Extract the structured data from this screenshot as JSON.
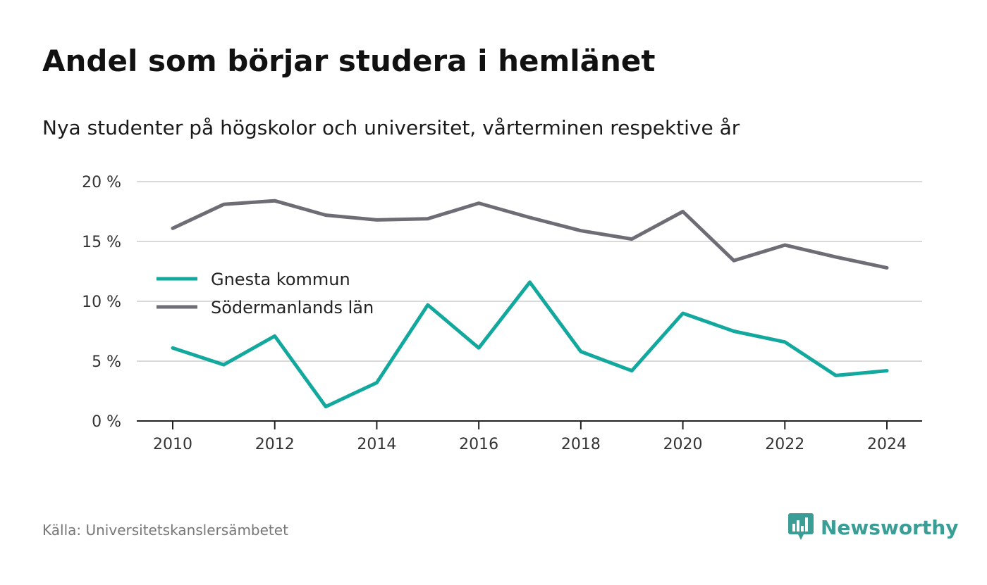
{
  "title": "Andel som börjar studera i hemlänet",
  "subtitle": "Nya studenter på högskolor och universitet, vårterminen respektive år",
  "source": "Källa: Universitetskanslersämbetet",
  "brand": {
    "name": "Newsworthy",
    "icon": "newsworthy-logo-icon",
    "color": "#3a9e96"
  },
  "chart_data": {
    "type": "line",
    "x": [
      2010,
      2011,
      2012,
      2013,
      2014,
      2015,
      2016,
      2017,
      2018,
      2019,
      2020,
      2021,
      2022,
      2023,
      2024
    ],
    "series": [
      {
        "name": "Gnesta kommun",
        "color": "#13a89e",
        "values": [
          6.1,
          4.7,
          7.1,
          1.2,
          3.2,
          9.7,
          6.1,
          11.6,
          5.8,
          4.2,
          9.0,
          7.5,
          6.6,
          3.8,
          4.2
        ]
      },
      {
        "name": "Södermanlands län",
        "color": "#6e6d75",
        "values": [
          16.1,
          18.1,
          18.4,
          17.2,
          16.8,
          16.9,
          18.2,
          17.0,
          15.9,
          15.2,
          17.5,
          13.4,
          14.7,
          13.7,
          12.8
        ]
      }
    ],
    "y_ticks": [
      0,
      5,
      10,
      15,
      20
    ],
    "y_tick_labels": [
      "0 %",
      "5 %",
      "10 %",
      "15 %",
      "20 %"
    ],
    "x_ticks": [
      2010,
      2012,
      2014,
      2016,
      2018,
      2020,
      2022,
      2024
    ],
    "x_tick_labels": [
      "2010",
      "2012",
      "2014",
      "2016",
      "2018",
      "2020",
      "2022",
      "2024"
    ],
    "ylim": [
      0,
      20
    ],
    "xlim": [
      2009.3,
      2024.7
    ],
    "grid": true,
    "legend_position": "center-left",
    "xlabel": "",
    "ylabel": ""
  }
}
